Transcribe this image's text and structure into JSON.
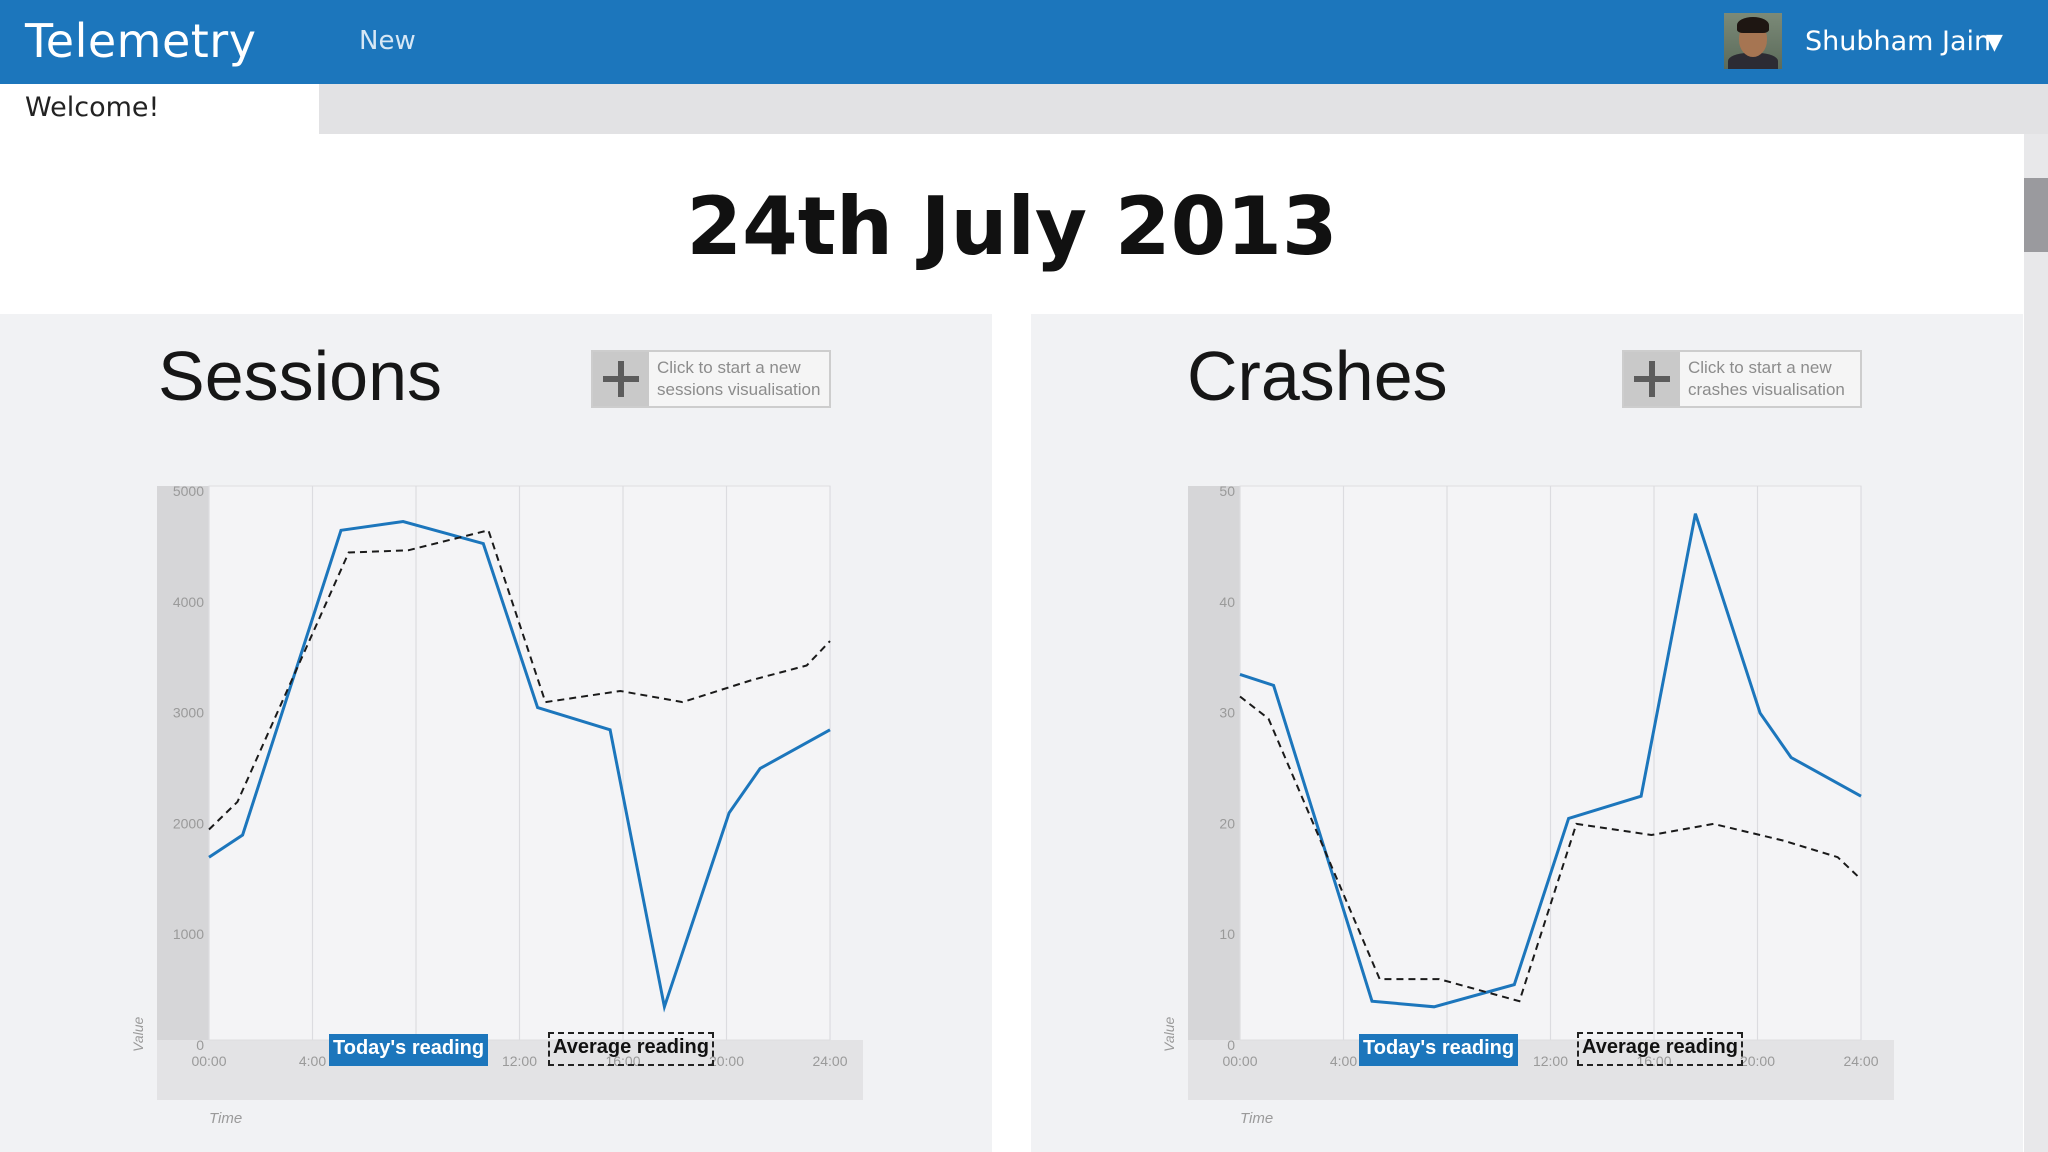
{
  "header": {
    "app_title": "Telemetry",
    "nav_new": "New",
    "user_name": "Shubham Jain",
    "caret": "▼"
  },
  "welcome_tab": "Welcome!",
  "date_heading": "24th July 2013",
  "panels": [
    {
      "title": "Sessions",
      "add_button_label": "Click to start a new sessions visualisation",
      "legend_today": "Today's reading",
      "legend_average": "Average reading"
    },
    {
      "title": "Crashes",
      "add_button_label": "Click to start a new crashes visualisation",
      "legend_today": "Today's reading",
      "legend_average": "Average reading"
    }
  ],
  "colors": {
    "accent": "#1c76bc",
    "panel": "#f1f2f4",
    "axis_band": "#d6d6d8"
  },
  "chart_data": [
    {
      "type": "line",
      "xlabel": "Time",
      "ylabel": "Value",
      "x_ticks": [
        "00:00",
        "4:00",
        "8:00",
        "12:00",
        "16:00",
        "20:00",
        "24:00"
      ],
      "y_ticks": [
        "0",
        "1000",
        "2000",
        "3000",
        "4000",
        "5000"
      ],
      "xlim": [
        0,
        24
      ],
      "ylim": [
        0,
        5000
      ],
      "grid": true,
      "series": [
        {
          "name": "Today's reading",
          "style": "solid",
          "x": [
            0,
            1.3,
            5.1,
            7.5,
            10.6,
            12.7,
            15.5,
            17.6,
            20.1,
            21.3,
            24
          ],
          "y": [
            1650,
            1850,
            4600,
            4680,
            4480,
            3000,
            2800,
            300,
            2050,
            2450,
            2800
          ]
        },
        {
          "name": "Average reading",
          "style": "dashed",
          "x": [
            0,
            1.1,
            5.4,
            7.7,
            10.8,
            13.0,
            15.9,
            18.3,
            21.0,
            23.1,
            24
          ],
          "y": [
            1900,
            2150,
            4400,
            4420,
            4600,
            3050,
            3150,
            3050,
            3250,
            3380,
            3600
          ]
        }
      ]
    },
    {
      "type": "line",
      "xlabel": "Time",
      "ylabel": "Value",
      "x_ticks": [
        "00:00",
        "4:00",
        "8:00",
        "12:00",
        "16:00",
        "20:00",
        "24:00"
      ],
      "y_ticks": [
        "0",
        "10",
        "20",
        "30",
        "40",
        "50"
      ],
      "xlim": [
        0,
        24
      ],
      "ylim": [
        0,
        50
      ],
      "grid": true,
      "series": [
        {
          "name": "Today's reading",
          "style": "solid",
          "x": [
            0,
            1.3,
            5.1,
            7.5,
            10.6,
            12.7,
            15.5,
            17.6,
            20.1,
            21.3,
            24
          ],
          "y": [
            33,
            32,
            3.5,
            3,
            5,
            20,
            22,
            47.5,
            29.5,
            25.5,
            22
          ]
        },
        {
          "name": "Average reading",
          "style": "dashed",
          "x": [
            0,
            1.1,
            5.4,
            7.7,
            10.8,
            13.0,
            15.9,
            18.3,
            21.0,
            23.1,
            24
          ],
          "y": [
            31,
            29,
            5.5,
            5.5,
            3.5,
            19.5,
            18.5,
            19.5,
            18,
            16.5,
            14.5
          ]
        }
      ]
    }
  ]
}
